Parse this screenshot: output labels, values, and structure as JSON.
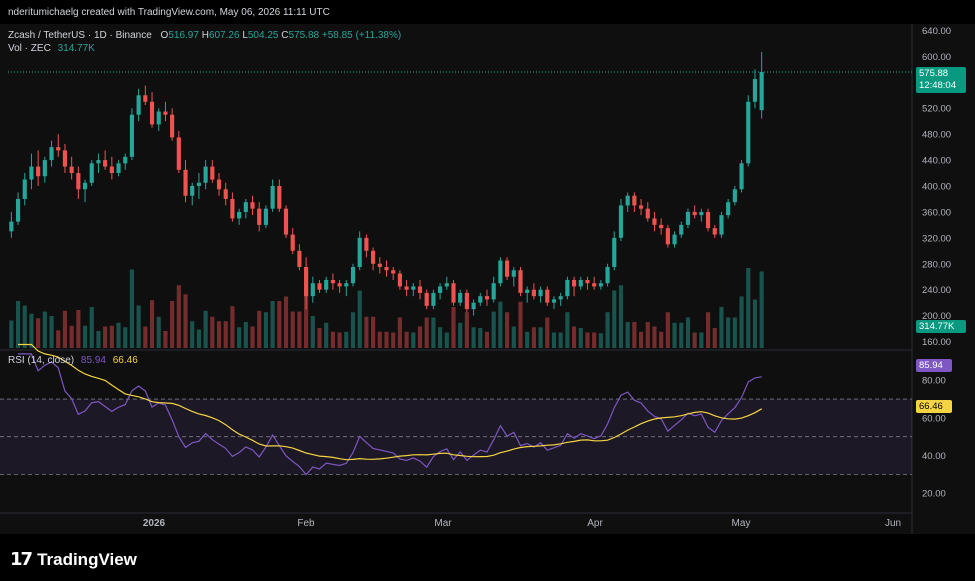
{
  "header": {
    "attribution": "nderitumichaelg created with TradingView.com, May 06, 2026 11:11 UTC"
  },
  "legend": {
    "symbol": "Zcash / TetherUS · 1D · Binance",
    "o_label": "O",
    "o_val": "516.97",
    "h_label": "H",
    "h_val": "607.26",
    "l_label": "L",
    "l_val": "504.25",
    "c_label": "C",
    "c_val": "575.88",
    "change": "+58.85 (+11.38%)",
    "vol_label": "Vol · ZEC",
    "vol_val": "314.77K"
  },
  "rsi_legend": {
    "label": "RSI (14, close)",
    "rsi_val": "85.94",
    "ma_val": "66.46"
  },
  "price_axis": [
    "640.00",
    "600.00",
    "560.00",
    "520.00",
    "480.00",
    "440.00",
    "400.00",
    "360.00",
    "320.00",
    "280.00",
    "240.00",
    "200.00",
    "160.00"
  ],
  "rsi_axis": [
    "80.00",
    "60.00",
    "40.00",
    "20.00"
  ],
  "time_axis": [
    "2026",
    "Feb",
    "Mar",
    "Apr",
    "May",
    "Jun"
  ],
  "badges": {
    "last_price": "575.88",
    "countdown": "12:48:04",
    "volume": "314.77K",
    "rsi": "85.94",
    "rsi_ma": "66.46"
  },
  "colors": {
    "up": "#26a69a",
    "down": "#ef5350",
    "rsi": "#7e57c2",
    "rsi_ma": "#f5d442",
    "background": "#0f0f0f"
  },
  "footer": {
    "brand": "TradingView",
    "logo_icon": "tradingview-logo-icon"
  },
  "chart_data": {
    "type": "candlestick",
    "symbol": "ZECUSDT",
    "interval": "1D",
    "y_range": [
      150,
      650
    ],
    "last_close": 575.88,
    "candles": [
      [
        330,
        360,
        320,
        345
      ],
      [
        345,
        390,
        340,
        380
      ],
      [
        380,
        420,
        370,
        410
      ],
      [
        410,
        450,
        395,
        430
      ],
      [
        430,
        455,
        400,
        415
      ],
      [
        415,
        445,
        405,
        440
      ],
      [
        440,
        470,
        430,
        460
      ],
      [
        460,
        480,
        445,
        455
      ],
      [
        455,
        465,
        420,
        430
      ],
      [
        430,
        445,
        410,
        420
      ],
      [
        420,
        430,
        380,
        395
      ],
      [
        395,
        410,
        375,
        405
      ],
      [
        405,
        440,
        400,
        435
      ],
      [
        435,
        450,
        420,
        440
      ],
      [
        440,
        455,
        425,
        430
      ],
      [
        430,
        445,
        410,
        420
      ],
      [
        420,
        440,
        415,
        435
      ],
      [
        435,
        450,
        425,
        445
      ],
      [
        445,
        520,
        440,
        510
      ],
      [
        510,
        550,
        500,
        540
      ],
      [
        540,
        555,
        525,
        530
      ],
      [
        530,
        545,
        490,
        495
      ],
      [
        495,
        520,
        485,
        515
      ],
      [
        515,
        530,
        500,
        510
      ],
      [
        510,
        520,
        470,
        475
      ],
      [
        475,
        485,
        420,
        425
      ],
      [
        425,
        440,
        375,
        385
      ],
      [
        385,
        405,
        370,
        400
      ],
      [
        400,
        420,
        380,
        405
      ],
      [
        405,
        440,
        395,
        430
      ],
      [
        430,
        440,
        405,
        410
      ],
      [
        410,
        420,
        385,
        395
      ],
      [
        395,
        405,
        370,
        380
      ],
      [
        380,
        390,
        345,
        350
      ],
      [
        350,
        365,
        340,
        360
      ],
      [
        360,
        380,
        350,
        375
      ],
      [
        375,
        385,
        355,
        365
      ],
      [
        365,
        375,
        330,
        340
      ],
      [
        340,
        370,
        335,
        365
      ],
      [
        365,
        410,
        360,
        400
      ],
      [
        400,
        410,
        360,
        365
      ],
      [
        365,
        370,
        320,
        325
      ],
      [
        325,
        335,
        295,
        300
      ],
      [
        300,
        310,
        270,
        275
      ],
      [
        275,
        290,
        210,
        230
      ],
      [
        230,
        260,
        220,
        250
      ],
      [
        250,
        255,
        235,
        240
      ],
      [
        240,
        260,
        235,
        255
      ],
      [
        255,
        265,
        240,
        250
      ],
      [
        250,
        255,
        235,
        245
      ],
      [
        245,
        255,
        230,
        250
      ],
      [
        250,
        280,
        245,
        275
      ],
      [
        275,
        330,
        270,
        320
      ],
      [
        320,
        325,
        290,
        300
      ],
      [
        300,
        305,
        270,
        280
      ],
      [
        280,
        290,
        265,
        275
      ],
      [
        275,
        285,
        260,
        270
      ],
      [
        270,
        275,
        255,
        265
      ],
      [
        265,
        270,
        240,
        245
      ],
      [
        245,
        255,
        230,
        240
      ],
      [
        240,
        250,
        230,
        245
      ],
      [
        245,
        255,
        225,
        235
      ],
      [
        235,
        240,
        210,
        215
      ],
      [
        215,
        240,
        210,
        235
      ],
      [
        235,
        250,
        225,
        245
      ],
      [
        245,
        260,
        240,
        250
      ],
      [
        250,
        255,
        215,
        220
      ],
      [
        220,
        240,
        215,
        235
      ],
      [
        235,
        240,
        205,
        210
      ],
      [
        210,
        225,
        200,
        220
      ],
      [
        220,
        235,
        215,
        230
      ],
      [
        230,
        240,
        215,
        225
      ],
      [
        225,
        260,
        220,
        250
      ],
      [
        250,
        290,
        245,
        285
      ],
      [
        285,
        290,
        255,
        260
      ],
      [
        260,
        275,
        245,
        270
      ],
      [
        270,
        275,
        230,
        235
      ],
      [
        235,
        245,
        220,
        240
      ],
      [
        240,
        250,
        225,
        230
      ],
      [
        230,
        245,
        220,
        240
      ],
      [
        240,
        245,
        215,
        220
      ],
      [
        220,
        230,
        210,
        225
      ],
      [
        225,
        235,
        215,
        230
      ],
      [
        230,
        260,
        225,
        255
      ],
      [
        255,
        260,
        230,
        245
      ],
      [
        245,
        260,
        240,
        255
      ],
      [
        255,
        260,
        240,
        250
      ],
      [
        250,
        260,
        240,
        245
      ],
      [
        245,
        255,
        240,
        250
      ],
      [
        250,
        280,
        245,
        275
      ],
      [
        275,
        330,
        270,
        320
      ],
      [
        320,
        380,
        315,
        370
      ],
      [
        370,
        390,
        360,
        385
      ],
      [
        385,
        390,
        360,
        370
      ],
      [
        370,
        380,
        355,
        365
      ],
      [
        365,
        375,
        345,
        350
      ],
      [
        350,
        360,
        330,
        340
      ],
      [
        340,
        350,
        325,
        335
      ],
      [
        335,
        340,
        305,
        310
      ],
      [
        310,
        330,
        305,
        325
      ],
      [
        325,
        345,
        320,
        340
      ],
      [
        340,
        365,
        335,
        360
      ],
      [
        360,
        370,
        350,
        355
      ],
      [
        355,
        365,
        345,
        360
      ],
      [
        360,
        365,
        330,
        335
      ],
      [
        335,
        340,
        320,
        325
      ],
      [
        325,
        360,
        320,
        355
      ],
      [
        355,
        380,
        350,
        375
      ],
      [
        375,
        400,
        370,
        395
      ],
      [
        395,
        440,
        390,
        435
      ],
      [
        435,
        540,
        430,
        530
      ],
      [
        530,
        580,
        520,
        565
      ],
      [
        517,
        607,
        504,
        576
      ]
    ]
  }
}
